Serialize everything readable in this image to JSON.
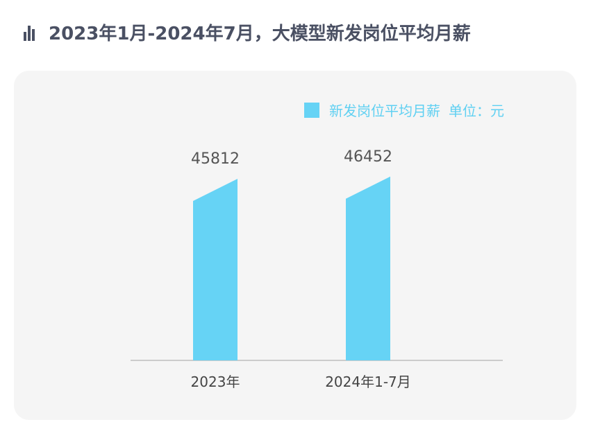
{
  "header": {
    "title": "2023年1月-2024年7月，大模型新发岗位平均月薪",
    "icon": "bar-chart-icon"
  },
  "colors": {
    "bar": "#66d3f5",
    "title": "#4a5063",
    "axis": "#cccccc",
    "label": "#555555"
  },
  "chart_data": {
    "type": "bar",
    "categories": [
      "2023年",
      "2024年1-7月"
    ],
    "series": [
      {
        "name": "新发岗位平均月薪",
        "values": [
          45812,
          46452
        ]
      }
    ],
    "unit_label": "单位：元",
    "data_labels": [
      "45812",
      "46452"
    ],
    "legend_position": "top-right",
    "grid": false
  }
}
